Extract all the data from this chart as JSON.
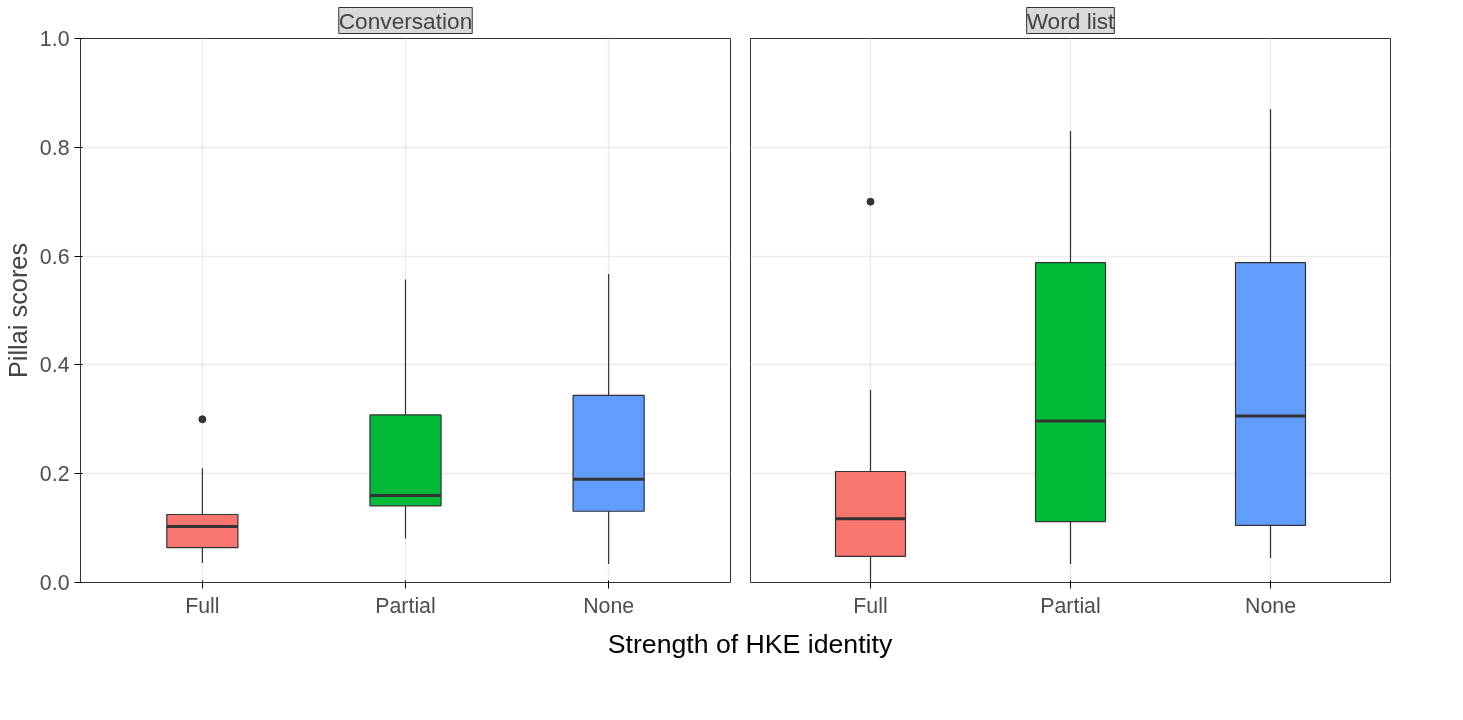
{
  "chart_data": [
    {
      "type": "box",
      "title": "Conversation",
      "ylabel": "Pillai scores",
      "xlabel": "Strength of HKE identity",
      "categories": [
        "Full",
        "Partial",
        "None"
      ],
      "colors": [
        "#f8766d",
        "#00ba38",
        "#619cff"
      ],
      "ylim": [
        0,
        1
      ],
      "yticks": [
        {
          "value": 0,
          "label": "0.0"
        },
        0.2,
        0.4,
        0.6,
        0.8,
        {
          "value": 1,
          "label": "1.0"
        }
      ],
      "grid": true,
      "boxes": [
        {
          "low": 0.036,
          "q1": 0.064,
          "median": 0.103,
          "q3": 0.125,
          "high": 0.21,
          "outliers": [
            0.3
          ]
        },
        {
          "low": 0.081,
          "q1": 0.141,
          "median": 0.16,
          "q3": 0.308,
          "high": 0.557
        },
        {
          "low": 0.034,
          "q1": 0.131,
          "median": 0.19,
          "q3": 0.344,
          "high": 0.567
        }
      ]
    },
    {
      "type": "box",
      "title": "Word list",
      "categories": [
        "Full",
        "Partial",
        "None"
      ],
      "colors": [
        "#f8766d",
        "#00ba38",
        "#619cff"
      ],
      "ylim": [
        0,
        1
      ],
      "yticks": [
        0,
        0.2,
        0.4,
        0.6,
        0.8,
        1
      ],
      "grid": true,
      "tick_labels": "x",
      "boxes": [
        {
          "low": 0.0,
          "q1": 0.048,
          "median": 0.117,
          "q3": 0.204,
          "high": 0.354,
          "outliers": [
            0.7
          ]
        },
        {
          "low": 0.034,
          "q1": 0.112,
          "median": 0.297,
          "q3": 0.588,
          "high": 0.83
        },
        {
          "low": 0.045,
          "q1": 0.105,
          "median": 0.306,
          "q3": 0.588,
          "high": 0.87
        }
      ]
    }
  ]
}
